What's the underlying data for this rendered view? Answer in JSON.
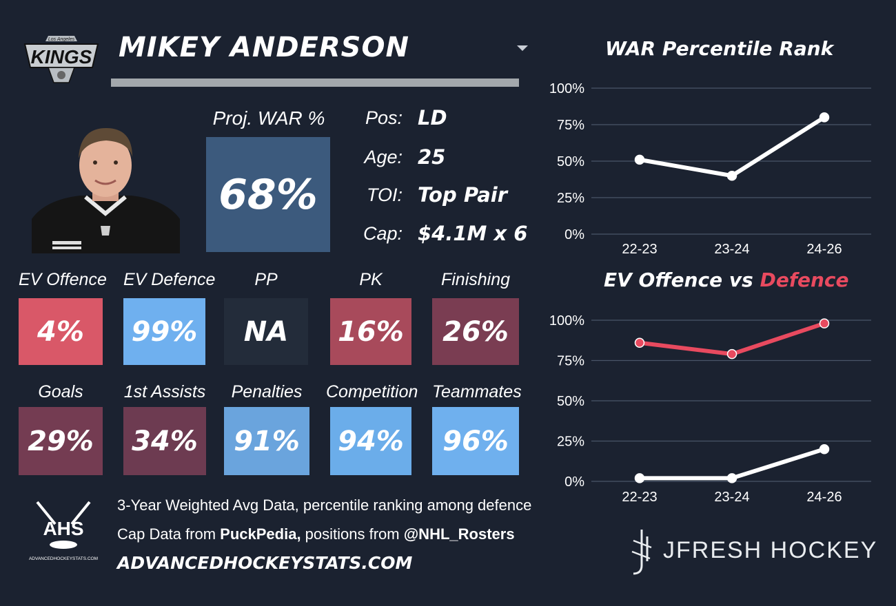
{
  "team": {
    "logo_small": "Los Angeles",
    "logo_big": "KINGS"
  },
  "player": {
    "name": "MIKEY ANDERSON",
    "proj_war_label": "Proj. WAR %",
    "proj_war_value": "68%",
    "info": [
      {
        "label": "Pos:",
        "value": "LD"
      },
      {
        "label": "Age:",
        "value": "25"
      },
      {
        "label": "TOI:",
        "value": "Top Pair"
      },
      {
        "label": "Cap:",
        "value": "$4.1M x 6"
      }
    ]
  },
  "tiles_row1": [
    {
      "label": "EV Offence",
      "value": "4%",
      "color": "#d95868"
    },
    {
      "label": "EV Defence",
      "value": "99%",
      "color": "#6fb0ef"
    },
    {
      "label": "PP",
      "value": "NA",
      "color": "#232c3a"
    },
    {
      "label": "PK",
      "value": "16%",
      "color": "#a84a5b"
    },
    {
      "label": "Finishing",
      "value": "26%",
      "color": "#7a3d52"
    }
  ],
  "tiles_row2": [
    {
      "label": "Goals",
      "value": "29%",
      "color": "#743c52"
    },
    {
      "label": "1st Assists",
      "value": "34%",
      "color": "#6d3b51"
    },
    {
      "label": "Penalties",
      "value": "91%",
      "color": "#6aa4dd"
    },
    {
      "label": "Competition",
      "value": "94%",
      "color": "#6badea"
    },
    {
      "label": "Teammates",
      "value": "96%",
      "color": "#6fb0ee"
    }
  ],
  "footer": {
    "line1": "3-Year Weighted Avg Data, percentile ranking among defence",
    "line2_prefix": "Cap Data from ",
    "line2_source": "PuckPedia,",
    "line2_mid": " positions from ",
    "line2_handle": "@NHL_Rosters",
    "site": "ADVANCEDHOCKEYSTATS.COM",
    "ahs_logo_text": "AHS",
    "ahs_logo_sub": "ADVANCEDHOCKEYSTATS.COM"
  },
  "brand": {
    "name": "JFRESH HOCKEY"
  },
  "colors": {
    "background": "#1b2230",
    "offence_line": "#ffffff",
    "defence_line": "#e84a5f",
    "grid": "#4a5568"
  },
  "chart_data": [
    {
      "type": "line",
      "title": "WAR Percentile Rank",
      "categories": [
        "22-23",
        "23-24",
        "24-26"
      ],
      "series": [
        {
          "values": [
            51,
            40,
            80
          ],
          "color": "#ffffff"
        }
      ],
      "ylim": [
        0,
        100
      ],
      "yticks": [
        "0%",
        "25%",
        "50%",
        "75%",
        "100%"
      ],
      "grid": true
    },
    {
      "type": "line",
      "title_part1": "EV Offence vs ",
      "title_part2": "Defence",
      "categories": [
        "22-23",
        "23-24",
        "24-26"
      ],
      "series": [
        {
          "values": [
            86,
            79,
            98
          ],
          "color": "#e84a5f"
        },
        {
          "values": [
            2,
            2,
            20
          ],
          "color": "#ffffff"
        }
      ],
      "ylim": [
        0,
        100
      ],
      "yticks": [
        "0%",
        "25%",
        "50%",
        "75%",
        "100%"
      ],
      "grid": true
    }
  ]
}
